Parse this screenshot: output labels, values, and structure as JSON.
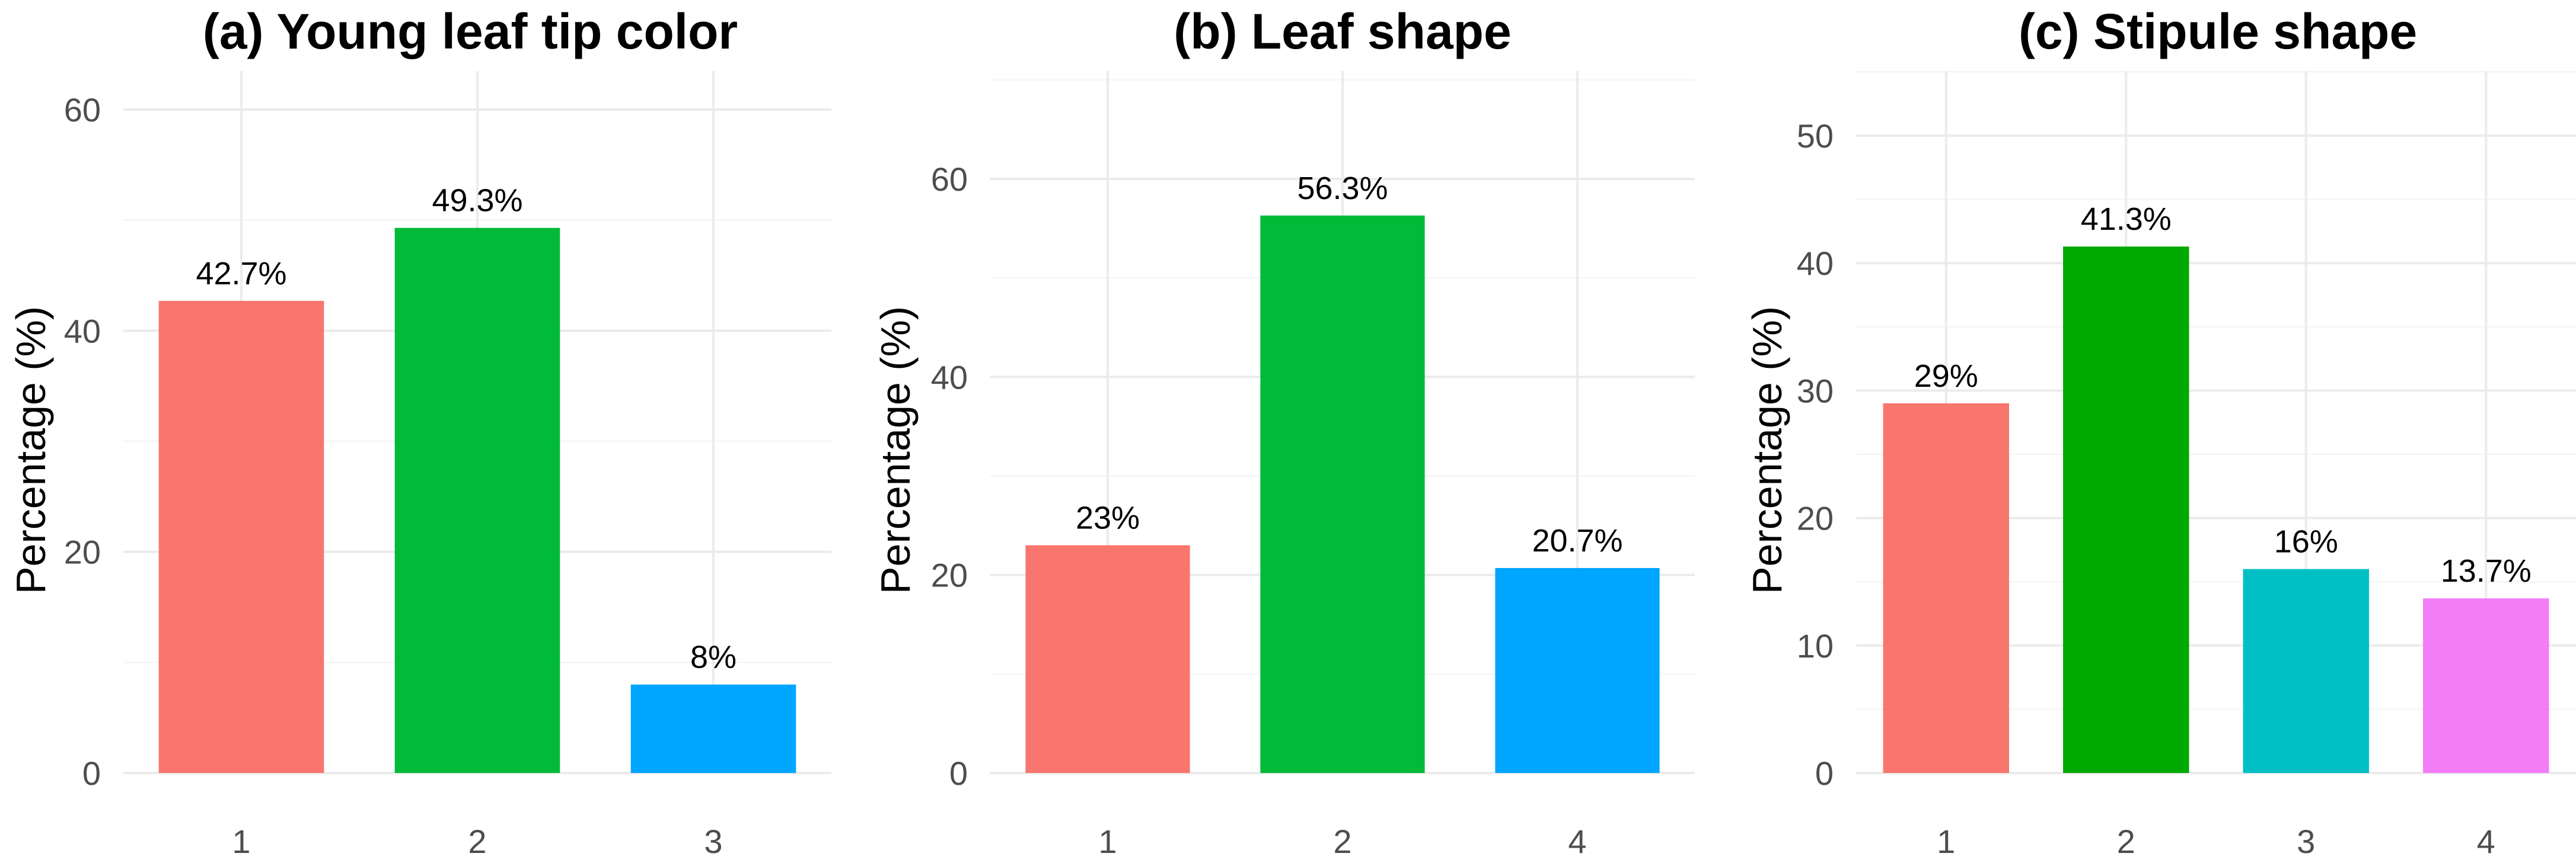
{
  "chart_data": [
    {
      "type": "bar",
      "title": "(a) Young leaf tip color",
      "xlabel": "",
      "ylabel": "Percentage (%)",
      "categories": [
        "1",
        "2",
        "3"
      ],
      "values": [
        42.7,
        49.3,
        8
      ],
      "data_labels": [
        "42.7%",
        "49.3%",
        "8%"
      ],
      "colors": [
        "#F8766D",
        "#00BA38",
        "#00A5FF"
      ],
      "ylim": [
        0,
        60
      ],
      "yticks": [
        0,
        20,
        40,
        60
      ],
      "ytick_labels": [
        "0",
        "20",
        "40",
        "60"
      ],
      "grid": true,
      "legend": "none"
    },
    {
      "type": "bar",
      "title": "(b) Leaf shape",
      "xlabel": "",
      "ylabel": "Percentage (%)",
      "categories": [
        "1",
        "2",
        "4"
      ],
      "values": [
        23,
        56.3,
        20.7
      ],
      "data_labels": [
        "23%",
        "56.3%",
        "20.7%"
      ],
      "colors": [
        "#F8766D",
        "#00BA38",
        "#00A5FF"
      ],
      "ylim": [
        0,
        60
      ],
      "yticks": [
        0,
        20,
        40,
        60
      ],
      "ytick_labels": [
        "0",
        "20",
        "40",
        "60"
      ],
      "grid": true,
      "legend": "none"
    },
    {
      "type": "bar",
      "title": "(c) Stipule shape",
      "xlabel": "",
      "ylabel": "Percentage (%)",
      "categories": [
        "1",
        "2",
        "3",
        "4"
      ],
      "values": [
        29,
        41.3,
        16,
        13.7
      ],
      "data_labels": [
        "29%",
        "41.3%",
        "16%",
        "13.7%"
      ],
      "colors": [
        "#F8766D",
        "#00A900",
        "#00BFC4",
        "#F27DF7"
      ],
      "ylim": [
        0,
        50
      ],
      "yticks": [
        0,
        10,
        20,
        30,
        40,
        50
      ],
      "ytick_labels": [
        "0",
        "10",
        "20",
        "30",
        "40",
        "50"
      ],
      "grid": true,
      "legend": "none"
    }
  ]
}
